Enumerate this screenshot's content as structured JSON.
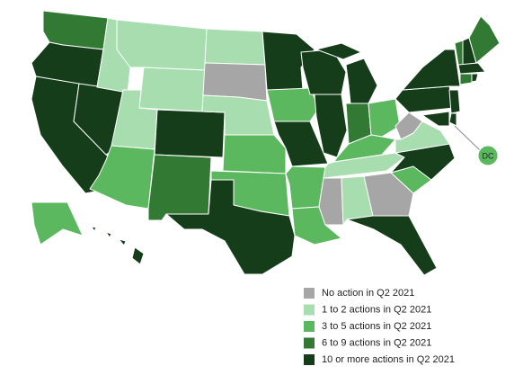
{
  "legend": {
    "items": [
      {
        "label": "No action in Q2 2021",
        "color": "#a6a6a6"
      },
      {
        "label": "1 to 2 actions in Q2 2021",
        "color": "#a8ddb0"
      },
      {
        "label": "3 to 5 actions in Q2 2021",
        "color": "#5cb85f"
      },
      {
        "label": "6 to 9 actions in Q2 2021",
        "color": "#327a34"
      },
      {
        "label": "10 or more actions in Q2 2021",
        "color": "#153d1a"
      }
    ]
  },
  "map": {
    "dc_label": "DC"
  }
}
